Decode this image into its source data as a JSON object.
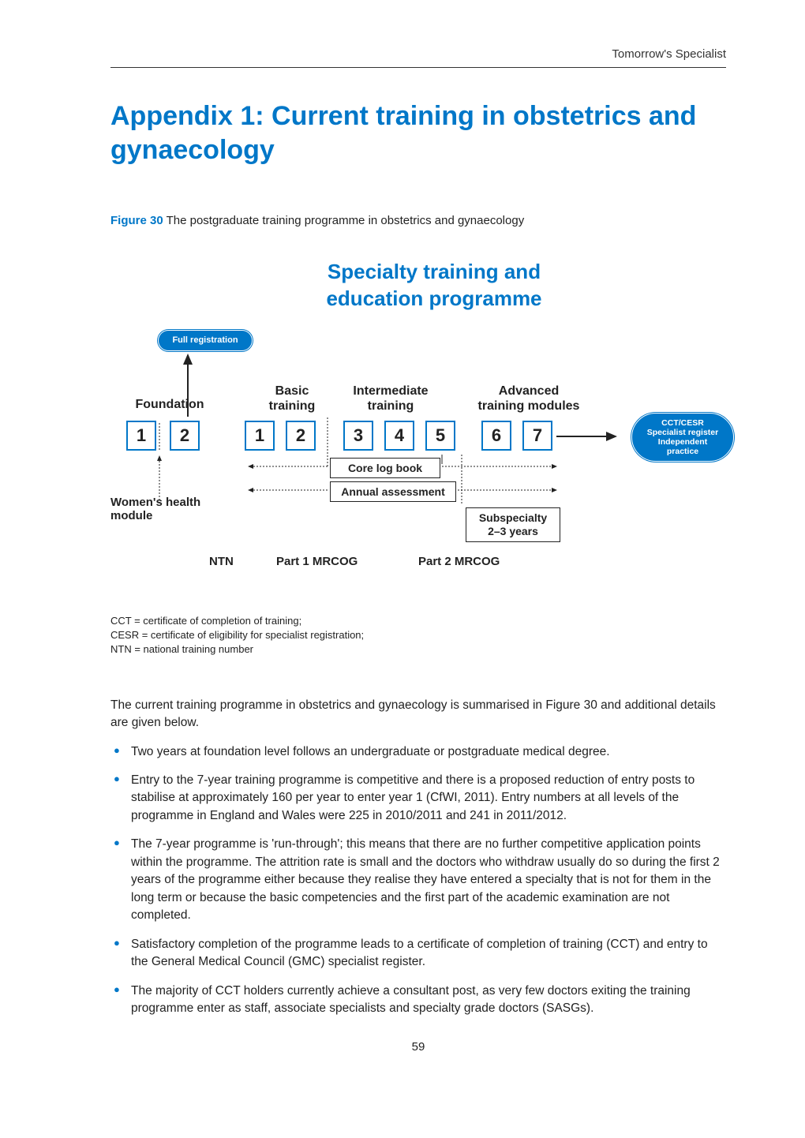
{
  "header": {
    "running": "Tomorrow's Specialist"
  },
  "title": "Appendix 1: Current training in obstetrics and gynaecology",
  "figure": {
    "label": "Figure 30",
    "caption": "The postgraduate training programme in obstetrics and gynaecology",
    "title_l1": "Specialty training and",
    "title_l2": "education programme",
    "pill_reg": "Full registration",
    "pill_cct_l1": "CCT/CESR",
    "pill_cct_l2": "Specialist register",
    "pill_cct_l3": "Independent practice",
    "foundation": "Foundation",
    "basic_l1": "Basic",
    "basic_l2": "training",
    "intermediate_l1": "Intermediate",
    "intermediate_l2": "training",
    "advanced_l1": "Advanced",
    "advanced_l2": "training modules",
    "years_f": [
      "1",
      "2"
    ],
    "years_st": [
      "1",
      "2",
      "3",
      "4",
      "5",
      "6",
      "7"
    ],
    "year_positions_f": [
      20,
      75
    ],
    "year_positions_st": [
      170,
      222,
      295,
      347,
      399,
      470,
      522
    ],
    "core": "Core log book",
    "annual": "Annual assessment",
    "sub_l1": "Subspecialty",
    "sub_l2": "2–3 years",
    "wh_l1": "Women's health",
    "wh_l2": "module",
    "ntn": "NTN",
    "p1": "Part 1 MRCOG",
    "p2": "Part 2 MRCOG",
    "colors": {
      "accent": "#0077c8",
      "text": "#222222"
    }
  },
  "abbrev": {
    "l1": "CCT = certificate of completion of training;",
    "l2": "CESR = certificate of eligibility for specialist registration;",
    "l3": "NTN = national training number"
  },
  "intro": "The current training programme in obstetrics and gynaecology is summarised in Figure 30 and additional details are given below.",
  "bullets": [
    "Two years at foundation level follows an undergraduate or postgraduate medical degree.",
    "Entry to the 7-year training programme is competitive and there is a proposed reduction of entry posts to stabilise at approximately 160 per year to enter year 1 (CfWI, 2011). Entry numbers at all levels of the programme in England and Wales were 225 in 2010/2011 and 241 in 2011/2012.",
    "The 7-year programme is 'run-through'; this means that there are no further competitive application points within the programme. The attrition rate is small and the doctors who withdraw usually do so during the first 2 years of the programme either because they realise they have entered a specialty that is not for them in the long term or because the basic competencies and the first part of the academic examination are not completed.",
    "Satisfactory completion of the programme leads to a certificate of completion of training (CCT) and entry to the General Medical Council (GMC) specialist register.",
    "The majority of CCT holders currently achieve a consultant post, as very few doctors exiting the training programme enter as staff, associate specialists and specialty grade doctors (SASGs)."
  ],
  "page_number": "59"
}
